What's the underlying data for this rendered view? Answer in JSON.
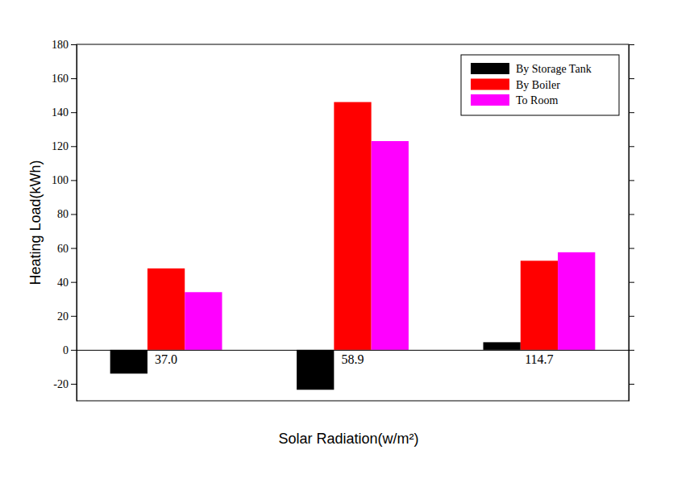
{
  "chart_data": {
    "type": "bar",
    "x_label": "Solar Radiation(w/m²)",
    "y_label": "Heating Load(kWh)",
    "categories": [
      "37.0",
      "58.9",
      "114.7"
    ],
    "series": [
      {
        "name": "By Storage Tank",
        "color": "#000000",
        "values": [
          -14,
          -23.5,
          4.5
        ]
      },
      {
        "name": "By Boiler",
        "color": "#ff0000",
        "values": [
          48,
          146,
          52.5
        ]
      },
      {
        "name": "To Room",
        "color": "#ff00ff",
        "values": [
          34,
          123,
          57.5
        ]
      }
    ],
    "ylim": [
      -30,
      180
    ],
    "yticks": [
      -20,
      0,
      20,
      40,
      60,
      80,
      100,
      120,
      140,
      160,
      180
    ],
    "legend": "upper right",
    "grid": false
  }
}
